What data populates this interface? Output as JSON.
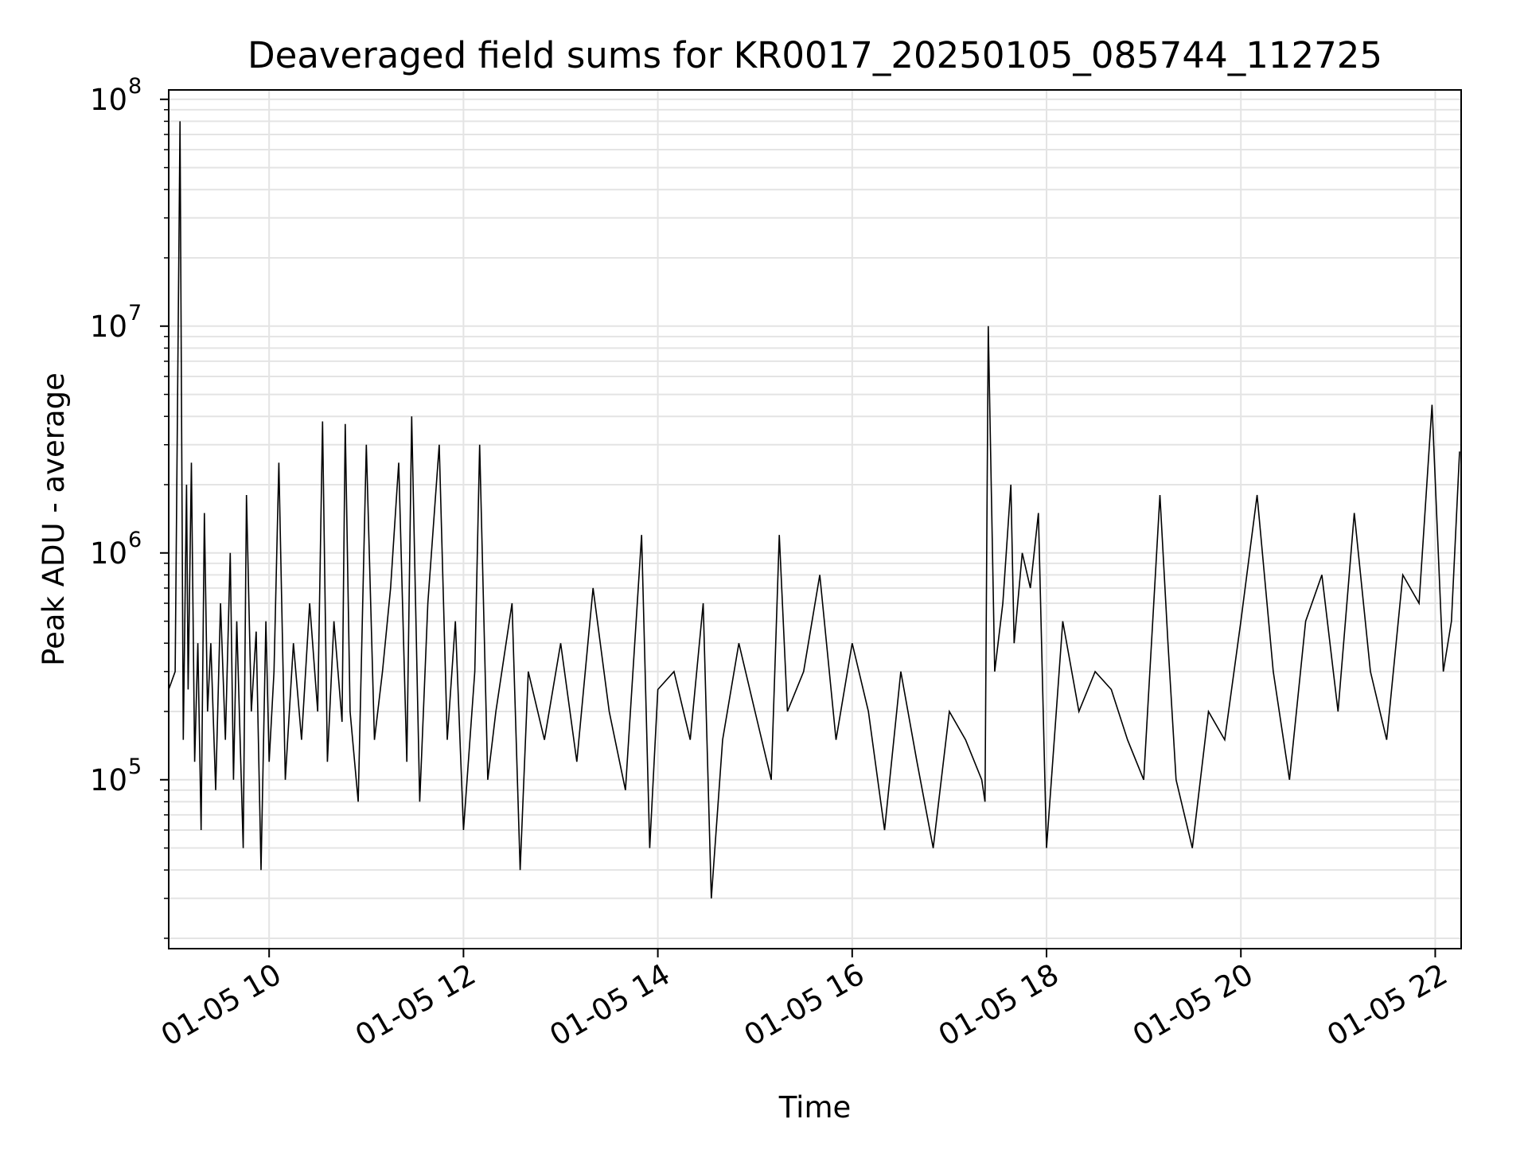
{
  "chart_data": {
    "type": "line",
    "title": "Deaveraged field sums for KR0017_20250105_085744_112725",
    "xlabel": "Time",
    "ylabel": "Peak ADU - average",
    "yscale": "log",
    "grid": true,
    "grid_minor": true,
    "xlim": [
      "2025-01-05 08:58",
      "2025-01-05 22:16"
    ],
    "ylim": [
      18000,
      110000000
    ],
    "x_ticks": [
      {
        "value": "2025-01-05 10:00",
        "label": "01-05 10"
      },
      {
        "value": "2025-01-05 12:00",
        "label": "01-05 12"
      },
      {
        "value": "2025-01-05 14:00",
        "label": "01-05 14"
      },
      {
        "value": "2025-01-05 16:00",
        "label": "01-05 16"
      },
      {
        "value": "2025-01-05 18:00",
        "label": "01-05 18"
      },
      {
        "value": "2025-01-05 20:00",
        "label": "01-05 20"
      },
      {
        "value": "2025-01-05 22:00",
        "label": "01-05 22"
      }
    ],
    "y_ticks": [
      {
        "value": 100000,
        "base": "10",
        "exp": "5"
      },
      {
        "value": 1000000,
        "base": "10",
        "exp": "6"
      },
      {
        "value": 10000000,
        "base": "10",
        "exp": "7"
      },
      {
        "value": 100000000,
        "base": "10",
        "exp": "8"
      }
    ],
    "series": [
      {
        "color": "#000000",
        "x": [
          "2025-01-05 08:58",
          "2025-01-05 09:02",
          "2025-01-05 09:05",
          "2025-01-05 09:07",
          "2025-01-05 09:09",
          "2025-01-05 09:10",
          "2025-01-05 09:12",
          "2025-01-05 09:14",
          "2025-01-05 09:16",
          "2025-01-05 09:18",
          "2025-01-05 09:20",
          "2025-01-05 09:22",
          "2025-01-05 09:24",
          "2025-01-05 09:27",
          "2025-01-05 09:30",
          "2025-01-05 09:33",
          "2025-01-05 09:36",
          "2025-01-05 09:38",
          "2025-01-05 09:40",
          "2025-01-05 09:44",
          "2025-01-05 09:46",
          "2025-01-05 09:49",
          "2025-01-05 09:52",
          "2025-01-05 09:55",
          "2025-01-05 09:58",
          "2025-01-05 10:00",
          "2025-01-05 10:03",
          "2025-01-05 10:06",
          "2025-01-05 10:10",
          "2025-01-05 10:15",
          "2025-01-05 10:20",
          "2025-01-05 10:25",
          "2025-01-05 10:30",
          "2025-01-05 10:33",
          "2025-01-05 10:36",
          "2025-01-05 10:40",
          "2025-01-05 10:45",
          "2025-01-05 10:47",
          "2025-01-05 10:50",
          "2025-01-05 10:55",
          "2025-01-05 11:00",
          "2025-01-05 11:05",
          "2025-01-05 11:10",
          "2025-01-05 11:15",
          "2025-01-05 11:20",
          "2025-01-05 11:25",
          "2025-01-05 11:28",
          "2025-01-05 11:33",
          "2025-01-05 11:38",
          "2025-01-05 11:45",
          "2025-01-05 11:50",
          "2025-01-05 11:55",
          "2025-01-05 12:00",
          "2025-01-05 12:07",
          "2025-01-05 12:10",
          "2025-01-05 12:15",
          "2025-01-05 12:20",
          "2025-01-05 12:30",
          "2025-01-05 12:35",
          "2025-01-05 12:40",
          "2025-01-05 12:50",
          "2025-01-05 13:00",
          "2025-01-05 13:10",
          "2025-01-05 13:20",
          "2025-01-05 13:30",
          "2025-01-05 13:40",
          "2025-01-05 13:50",
          "2025-01-05 13:55",
          "2025-01-05 14:00",
          "2025-01-05 14:10",
          "2025-01-05 14:20",
          "2025-01-05 14:28",
          "2025-01-05 14:33",
          "2025-01-05 14:40",
          "2025-01-05 14:50",
          "2025-01-05 15:00",
          "2025-01-05 15:10",
          "2025-01-05 15:15",
          "2025-01-05 15:20",
          "2025-01-05 15:30",
          "2025-01-05 15:40",
          "2025-01-05 15:50",
          "2025-01-05 16:00",
          "2025-01-05 16:10",
          "2025-01-05 16:20",
          "2025-01-05 16:30",
          "2025-01-05 16:40",
          "2025-01-05 16:50",
          "2025-01-05 17:00",
          "2025-01-05 17:10",
          "2025-01-05 17:20",
          "2025-01-05 17:22",
          "2025-01-05 17:24",
          "2025-01-05 17:28",
          "2025-01-05 17:33",
          "2025-01-05 17:38",
          "2025-01-05 17:40",
          "2025-01-05 17:45",
          "2025-01-05 17:50",
          "2025-01-05 17:55",
          "2025-01-05 18:00",
          "2025-01-05 18:10",
          "2025-01-05 18:20",
          "2025-01-05 18:30",
          "2025-01-05 18:40",
          "2025-01-05 18:50",
          "2025-01-05 19:00",
          "2025-01-05 19:10",
          "2025-01-05 19:15",
          "2025-01-05 19:20",
          "2025-01-05 19:30",
          "2025-01-05 19:40",
          "2025-01-05 19:50",
          "2025-01-05 20:00",
          "2025-01-05 20:10",
          "2025-01-05 20:20",
          "2025-01-05 20:30",
          "2025-01-05 20:40",
          "2025-01-05 20:50",
          "2025-01-05 21:00",
          "2025-01-05 21:10",
          "2025-01-05 21:20",
          "2025-01-05 21:30",
          "2025-01-05 21:40",
          "2025-01-05 21:50",
          "2025-01-05 21:58",
          "2025-01-05 22:05",
          "2025-01-05 22:10",
          "2025-01-05 22:15"
        ],
        "y": [
          250000,
          300000,
          80000000,
          150000,
          2000000,
          250000,
          2500000,
          120000,
          400000,
          60000,
          1500000,
          200000,
          400000,
          90000,
          600000,
          150000,
          1000000,
          100000,
          500000,
          50000,
          1800000,
          200000,
          450000,
          40000,
          500000,
          120000,
          300000,
          2500000,
          100000,
          400000,
          150000,
          600000,
          200000,
          3800000,
          120000,
          500000,
          180000,
          3700000,
          200000,
          80000,
          3000000,
          150000,
          300000,
          700000,
          2500000,
          120000,
          4000000,
          80000,
          600000,
          3000000,
          150000,
          500000,
          60000,
          300000,
          3000000,
          100000,
          200000,
          600000,
          40000,
          300000,
          150000,
          400000,
          120000,
          700000,
          200000,
          90000,
          1200000,
          50000,
          250000,
          300000,
          150000,
          600000,
          30000,
          150000,
          400000,
          200000,
          100000,
          1200000,
          200000,
          300000,
          800000,
          150000,
          400000,
          200000,
          60000,
          300000,
          120000,
          50000,
          200000,
          150000,
          100000,
          80000,
          10000000,
          300000,
          600000,
          2000000,
          400000,
          1000000,
          700000,
          1500000,
          50000,
          500000,
          200000,
          300000,
          250000,
          150000,
          100000,
          1800000,
          400000,
          100000,
          50000,
          200000,
          150000,
          500000,
          1800000,
          300000,
          100000,
          500000,
          800000,
          200000,
          1500000,
          300000,
          150000,
          800000,
          600000,
          4500000,
          300000,
          500000,
          2800000
        ]
      }
    ]
  }
}
